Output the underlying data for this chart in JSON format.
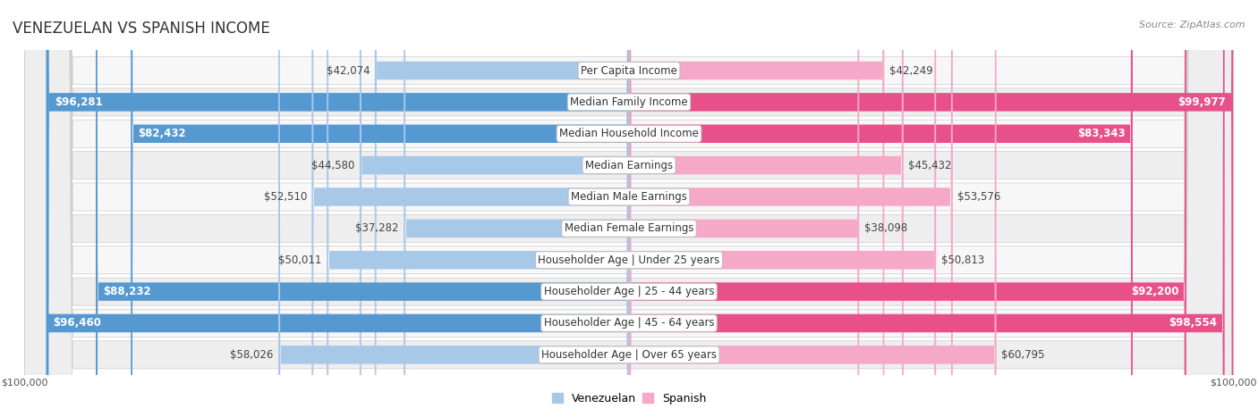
{
  "title": "VENEZUELAN VS SPANISH INCOME",
  "source": "Source: ZipAtlas.com",
  "max_value": 100000,
  "categories": [
    "Per Capita Income",
    "Median Family Income",
    "Median Household Income",
    "Median Earnings",
    "Median Male Earnings",
    "Median Female Earnings",
    "Householder Age | Under 25 years",
    "Householder Age | 25 - 44 years",
    "Householder Age | 45 - 64 years",
    "Householder Age | Over 65 years"
  ],
  "venezuelan_values": [
    42074,
    96281,
    82432,
    44580,
    52510,
    37282,
    50011,
    88232,
    96460,
    58026
  ],
  "spanish_values": [
    42249,
    99977,
    83343,
    45432,
    53576,
    38098,
    50813,
    92200,
    98554,
    60795
  ],
  "venezuelan_labels": [
    "$42,074",
    "$96,281",
    "$82,432",
    "$44,580",
    "$52,510",
    "$37,282",
    "$50,011",
    "$88,232",
    "$96,460",
    "$58,026"
  ],
  "spanish_labels": [
    "$42,249",
    "$99,977",
    "$83,343",
    "$45,432",
    "$53,576",
    "$38,098",
    "$50,813",
    "$92,200",
    "$98,554",
    "$60,795"
  ],
  "venezuelan_color_light": "#a8c8e8",
  "venezuelan_color_dark": "#5599d0",
  "spanish_color_light": "#f5a8c8",
  "spanish_color_dark": "#e8508a",
  "row_bg_even": "#f7f7f7",
  "row_bg_odd": "#eeeeee",
  "bar_height": 0.58,
  "label_fontsize": 8.5,
  "title_fontsize": 12,
  "category_fontsize": 8.5,
  "axis_label_fontsize": 8,
  "legend_fontsize": 9,
  "threshold": 75000
}
